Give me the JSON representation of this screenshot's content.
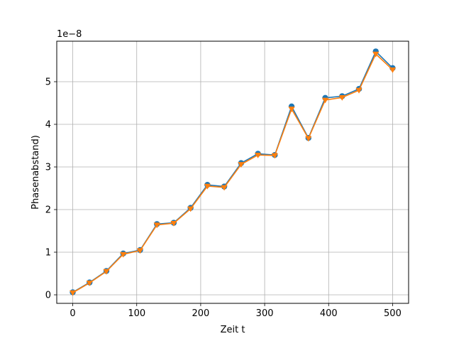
{
  "chart_data": {
    "type": "line",
    "title": "",
    "xlabel": "Zeit t",
    "ylabel": "Phasenabstand)",
    "y_offset_label": "1e−8",
    "y_scale_factor": 1e-08,
    "xlim": [
      -25,
      525
    ],
    "ylim": [
      -2e-09,
      5.95e-08
    ],
    "x_ticks": [
      0,
      100,
      200,
      300,
      400,
      500
    ],
    "x_tick_labels": [
      "0",
      "100",
      "200",
      "300",
      "400",
      "500"
    ],
    "y_ticks": [
      0,
      1e-08,
      2e-08,
      3e-08,
      4e-08,
      5e-08
    ],
    "y_tick_labels": [
      "0",
      "1",
      "2",
      "3",
      "4",
      "5"
    ],
    "grid": true,
    "legend": "none",
    "x": [
      0,
      26.3,
      52.6,
      78.9,
      105.3,
      131.6,
      157.9,
      184.2,
      210.5,
      236.8,
      263.2,
      289.5,
      315.8,
      342.1,
      368.4,
      394.7,
      421.1,
      447.4,
      473.7,
      500
    ],
    "series": [
      {
        "marker": "circle",
        "color": "#1f77b4",
        "values": [
          6e-10,
          2.9e-09,
          5.6e-09,
          9.7e-09,
          1.05e-08,
          1.66e-08,
          1.69e-08,
          2.04e-08,
          2.58e-08,
          2.54e-08,
          3.09e-08,
          3.31e-08,
          3.28e-08,
          4.42e-08,
          3.68e-08,
          4.62e-08,
          4.66e-08,
          4.83e-08,
          5.71e-08,
          5.32e-08
        ]
      },
      {
        "marker": "triangle-down",
        "color": "#ff7f0e",
        "values": [
          5e-10,
          2.8e-09,
          5.5e-09,
          9.5e-09,
          1.04e-08,
          1.64e-08,
          1.68e-08,
          2.02e-08,
          2.55e-08,
          2.52e-08,
          3.06e-08,
          3.28e-08,
          3.27e-08,
          4.36e-08,
          3.67e-08,
          4.57e-08,
          4.63e-08,
          4.8e-08,
          5.65e-08,
          5.28e-08
        ]
      }
    ]
  }
}
